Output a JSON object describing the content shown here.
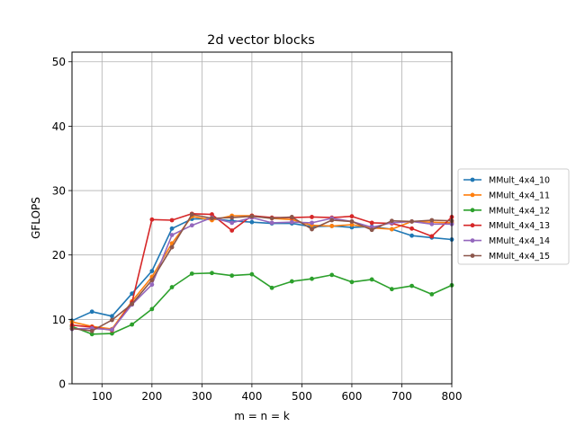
{
  "chart_data": {
    "type": "line",
    "title": "2d vector blocks",
    "xlabel": "m = n = k",
    "ylabel": "GFLOPS",
    "xlim": [
      40,
      800
    ],
    "ylim": [
      0,
      51.5
    ],
    "xticks": [
      100,
      200,
      300,
      400,
      500,
      600,
      700,
      800
    ],
    "yticks": [
      0,
      10,
      20,
      30,
      40,
      50
    ],
    "grid": true,
    "legend_position": "outside-right",
    "x": [
      40,
      80,
      120,
      160,
      200,
      240,
      280,
      320,
      360,
      400,
      440,
      480,
      520,
      560,
      600,
      640,
      680,
      720,
      760,
      800
    ],
    "series": [
      {
        "name": "MMult_4x4_10",
        "color": "#1f77b4",
        "values": [
          9.8,
          11.2,
          10.5,
          14.0,
          17.5,
          24.1,
          25.6,
          25.6,
          25.3,
          25.1,
          24.9,
          24.9,
          24.4,
          24.5,
          24.3,
          24.4,
          24.0,
          23.0,
          22.7,
          22.4
        ]
      },
      {
        "name": "MMult_4x4_11",
        "color": "#ff7f0e",
        "values": [
          9.6,
          8.9,
          8.5,
          12.8,
          16.6,
          21.8,
          26.0,
          25.4,
          26.1,
          26.1,
          25.7,
          25.5,
          24.6,
          24.5,
          24.7,
          24.2,
          24.0,
          25.2,
          25.1,
          25.0
        ]
      },
      {
        "name": "MMult_4x4_12",
        "color": "#2ca02c",
        "values": [
          8.9,
          7.7,
          7.8,
          9.2,
          11.6,
          15.0,
          17.1,
          17.2,
          16.8,
          17.0,
          14.9,
          15.9,
          16.3,
          16.9,
          15.8,
          16.2,
          14.7,
          15.2,
          13.9,
          15.3
        ]
      },
      {
        "name": "MMult_4x4_13",
        "color": "#d62728",
        "values": [
          9.1,
          8.8,
          8.3,
          12.6,
          25.5,
          25.4,
          26.4,
          26.3,
          23.8,
          26.1,
          25.8,
          25.8,
          25.9,
          25.8,
          26.0,
          25.0,
          24.9,
          24.1,
          22.9,
          25.9
        ]
      },
      {
        "name": "MMult_4x4_14",
        "color": "#9467bd",
        "values": [
          8.5,
          8.6,
          8.4,
          12.3,
          15.4,
          23.1,
          24.6,
          25.8,
          25.0,
          25.8,
          25.0,
          25.1,
          25.0,
          25.7,
          25.2,
          24.3,
          25.0,
          25.2,
          24.8,
          24.8
        ]
      },
      {
        "name": "MMult_4x4_15",
        "color": "#8c564b",
        "values": [
          8.6,
          8.2,
          9.9,
          12.4,
          16.1,
          21.2,
          26.3,
          25.7,
          25.8,
          26.0,
          25.7,
          25.9,
          24.0,
          25.4,
          25.2,
          23.9,
          25.3,
          25.2,
          25.4,
          25.3
        ]
      }
    ]
  }
}
